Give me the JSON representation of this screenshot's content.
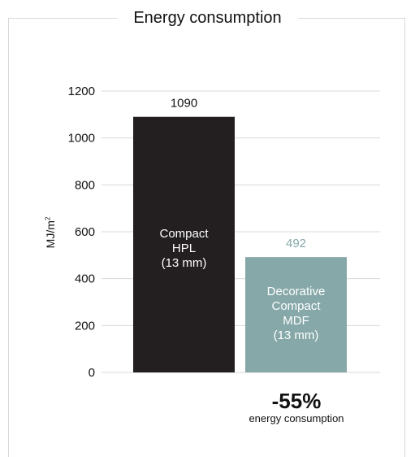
{
  "chart_data": {
    "type": "bar",
    "title": "Energy consumption",
    "ylabel": "MJ/m²",
    "ylabel_base": "MJ/m",
    "ylabel_sup": "2",
    "ylim": [
      0,
      1200
    ],
    "yticks": [
      0,
      200,
      400,
      600,
      800,
      1000,
      1200
    ],
    "grid": true,
    "categories": [
      "Compact\nHPL\n(13 mm)",
      "Decorative\nCompact\nMDF\n(13 mm)"
    ],
    "values": [
      1090,
      492
    ],
    "value_labels": [
      "1090",
      "492"
    ],
    "colors": [
      "#231f20",
      "#86a8a9"
    ],
    "value_label_colors": [
      "#111111",
      "#86a8a9"
    ],
    "annotation": {
      "headline": "-55%",
      "text": "energy consumption"
    }
  }
}
